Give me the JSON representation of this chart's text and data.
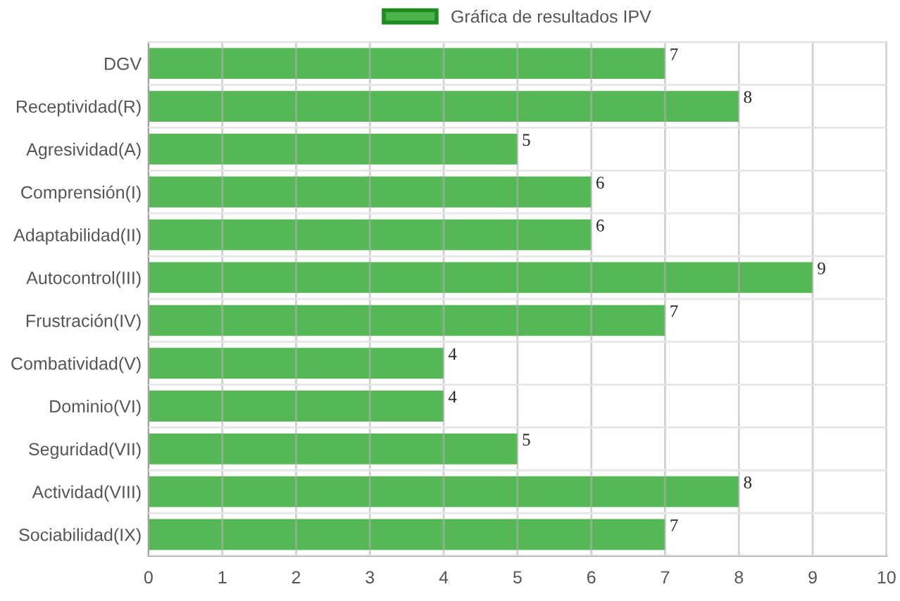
{
  "chart_data": {
    "type": "bar",
    "orientation": "horizontal",
    "categories": [
      "DGV",
      "Receptividad(R)",
      "Agresividad(A)",
      "Comprensión(I)",
      "Adaptabilidad(II)",
      "Autocontrol(III)",
      "Frustración(IV)",
      "Combatividad(V)",
      "Dominio(VI)",
      "Seguridad(VII)",
      "Actividad(VIII)",
      "Sociabilidad(IX)"
    ],
    "series": [
      {
        "name": "Gráfica de resultados IPV",
        "color": "#4cb34c",
        "values": [
          7,
          8,
          5,
          6,
          6,
          9,
          7,
          4,
          4,
          5,
          8,
          7
        ]
      }
    ],
    "xlim": [
      0,
      10
    ],
    "xticks": [
      0,
      1,
      2,
      3,
      4,
      5,
      6,
      7,
      8,
      9,
      10
    ],
    "grid": true,
    "legend": "top",
    "data_labels": true
  }
}
